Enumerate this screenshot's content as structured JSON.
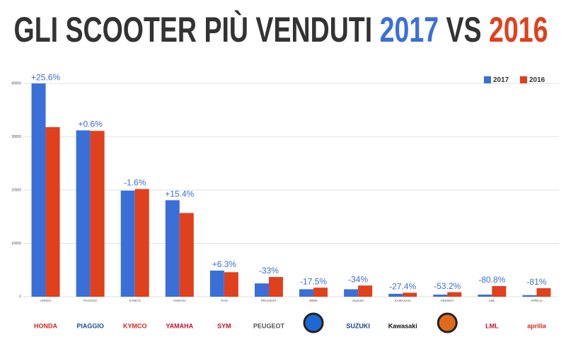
{
  "chart_data": {
    "type": "bar",
    "title": [
      "GLI SCOOTER PIÙ VENDUTI",
      "2017",
      "VS",
      "2016"
    ],
    "categories": [
      "HONDA",
      "PIAGGIO",
      "KYMCO",
      "YAMAHA",
      "SYM",
      "PEUGEOT",
      "BMW",
      "SUZUKI",
      "KAWASAKI",
      "KEEWAY",
      "LML",
      "APRILIA"
    ],
    "logos": [
      "HONDA",
      "PIAGGIO",
      "KYMCO",
      "YAMAHA",
      "SYM",
      "PEUGEOT",
      null,
      "SUZUKI",
      "Kawasaki",
      null,
      "LML",
      "aprilia"
    ],
    "series": [
      {
        "name": "2017",
        "color": "#3b6fd8",
        "values": [
          40000,
          31200,
          19900,
          18100,
          4900,
          2500,
          1400,
          1400,
          550,
          400,
          400,
          300
        ]
      },
      {
        "name": "2016",
        "color": "#e0401c",
        "values": [
          31800,
          31100,
          20200,
          15700,
          4600,
          3700,
          1700,
          2100,
          750,
          850,
          2000,
          1600
        ]
      }
    ],
    "annotations": [
      "+25.6%",
      "+0.6%",
      "-1.6%",
      "+15.4%",
      "+6.3%",
      "-33%",
      "-17.5%",
      "-34%",
      "-27.4%",
      "-53.2%",
      "-80.8%",
      "-81%"
    ],
    "ylim": [
      0,
      42000
    ],
    "yticks": [
      0,
      10000,
      20000,
      30000,
      40000
    ],
    "grid": true,
    "legend": "top-right"
  }
}
